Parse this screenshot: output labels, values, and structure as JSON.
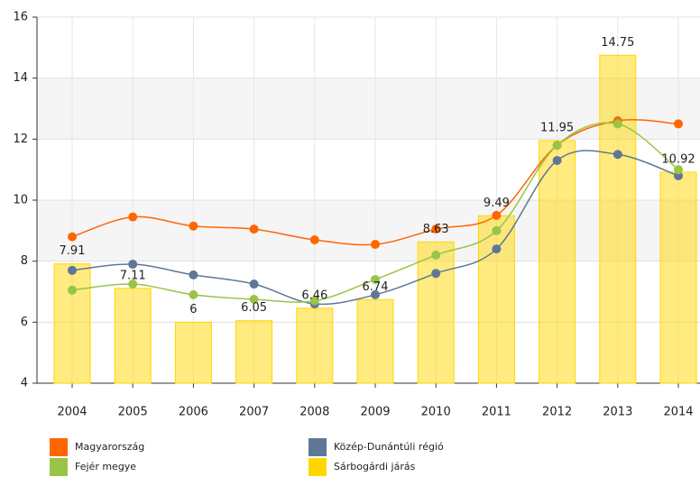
{
  "chart_data": {
    "type": "bar-line",
    "categories": [
      "2004",
      "2005",
      "2006",
      "2007",
      "2008",
      "2009",
      "2010",
      "2011",
      "2012",
      "2013",
      "2014"
    ],
    "series": [
      {
        "name": "Magyarország",
        "color": "#ff6600",
        "kind": "line",
        "values": [
          8.8,
          9.45,
          9.15,
          9.05,
          8.7,
          8.55,
          9.05,
          9.5,
          11.8,
          12.6,
          12.5
        ]
      },
      {
        "name": "Közép-Dunántúli régió",
        "color": "#5f7797",
        "kind": "line",
        "values": [
          7.7,
          7.9,
          7.55,
          7.25,
          6.6,
          6.9,
          7.6,
          8.4,
          11.3,
          11.5,
          10.8
        ]
      },
      {
        "name": "Fejér megye",
        "color": "#99c547",
        "kind": "line",
        "values": [
          7.05,
          7.25,
          6.9,
          6.75,
          6.7,
          7.4,
          8.2,
          9.0,
          11.8,
          12.5,
          11.0
        ]
      },
      {
        "name": "Sárbogárdi járás",
        "color": "#ffd700",
        "kind": "bar",
        "values": [
          7.91,
          7.11,
          6,
          6.05,
          6.46,
          6.74,
          8.63,
          9.49,
          11.95,
          14.75,
          10.92
        ]
      }
    ],
    "ylim": [
      4,
      16
    ],
    "yticks": [
      4,
      6,
      8,
      10,
      12,
      14,
      16
    ],
    "grid": true
  }
}
